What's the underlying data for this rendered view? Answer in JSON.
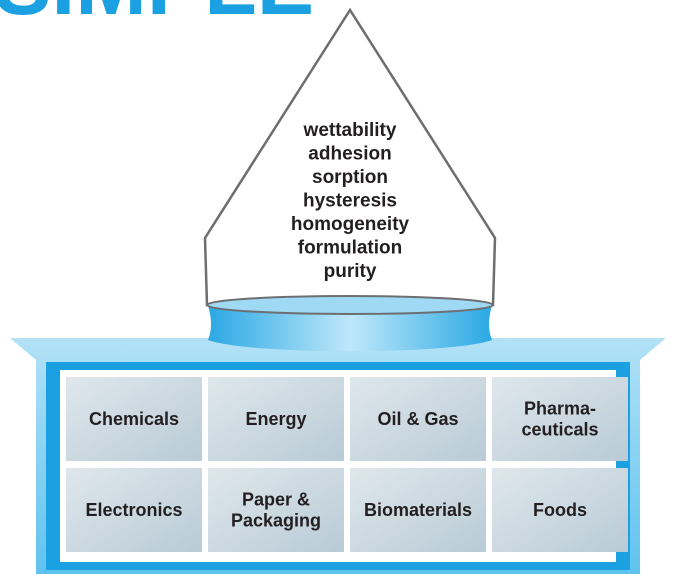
{
  "header": {
    "title": "SIMPLE"
  },
  "properties": [
    "wettability",
    "adhesion",
    "sorption",
    "hysteresis",
    "homogeneity",
    "formulation",
    "purity"
  ],
  "industries": [
    [
      "Chemicals"
    ],
    [
      "Energy"
    ],
    [
      "Oil & Gas"
    ],
    [
      "Pharma-",
      "ceuticals"
    ],
    [
      "Electronics"
    ],
    [
      "Paper &",
      "Packaging"
    ],
    [
      "Biomaterials"
    ],
    [
      "Foods"
    ]
  ]
}
